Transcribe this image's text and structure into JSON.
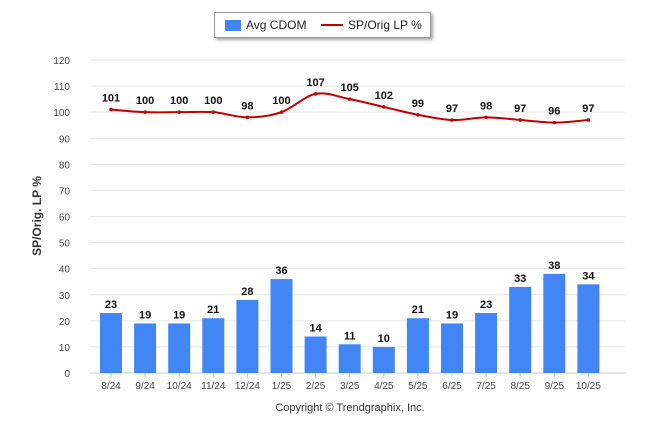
{
  "legend": {
    "bar_label": "Avg CDOM",
    "line_label": "SP/Orig LP %"
  },
  "credit": "Copyright © Trendgraphix, Inc.",
  "colors": {
    "bar": "#4285f4",
    "line": "#c00000",
    "grid": "#e6e6e6"
  },
  "chart_data": {
    "type": "bar",
    "title": "",
    "xlabel": "",
    "ylabel": "SP/Orig. LP %",
    "ylim": [
      0,
      120
    ],
    "yticks": [
      0,
      10,
      20,
      30,
      40,
      50,
      60,
      70,
      80,
      90,
      100,
      110,
      120
    ],
    "categories": [
      "8/24",
      "9/24",
      "10/24",
      "11/24",
      "12/24",
      "1/25",
      "2/25",
      "3/25",
      "4/25",
      "5/25",
      "6/25",
      "7/25",
      "8/25",
      "9/25",
      "10/25"
    ],
    "series": [
      {
        "name": "Avg CDOM",
        "type": "bar",
        "values": [
          23,
          19,
          19,
          21,
          28,
          36,
          14,
          11,
          10,
          21,
          19,
          23,
          33,
          38,
          34
        ]
      },
      {
        "name": "SP/Orig LP %",
        "type": "line",
        "values": [
          101,
          100,
          100,
          100,
          98,
          100,
          107,
          105,
          102,
          99,
          97,
          98,
          97,
          96,
          97
        ]
      }
    ]
  }
}
